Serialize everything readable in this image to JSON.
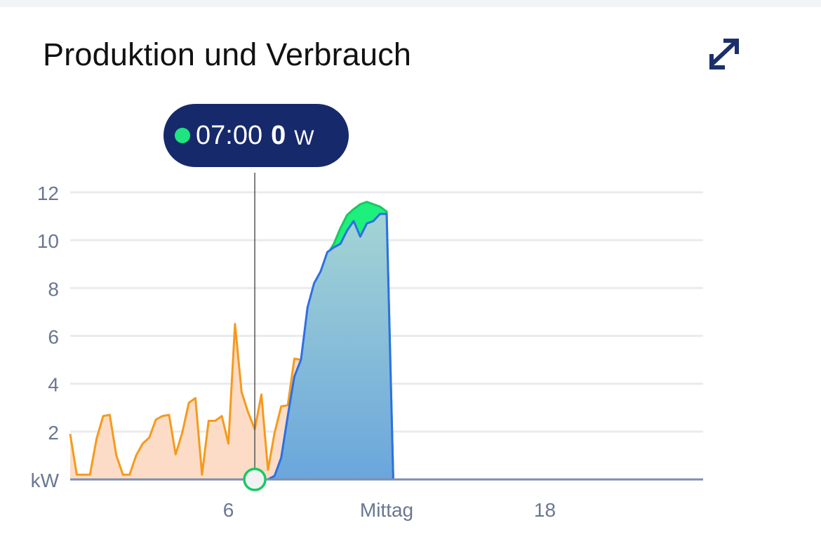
{
  "header": {
    "title": "Produktion und Verbrauch",
    "expand_icon": "expand-arrows-icon"
  },
  "tooltip": {
    "time": "07:00",
    "value": "0",
    "unit": "W",
    "dot_color": "#1de57f"
  },
  "colors": {
    "consumption_line": "#f59a1d",
    "consumption_fill": "#fcdcc6",
    "production_line": "#18c964",
    "production_fill": "#1ef07e",
    "self_use_line": "#2f6fe3",
    "self_use_fill_top": "#a4d4d4",
    "self_use_fill_bottom": "#6aa6dc",
    "grid": "#e9ebef",
    "axis_text": "#6a7791",
    "crosshair": "#555555",
    "header_icon": "#1b2f6b"
  },
  "chart_data": {
    "type": "area",
    "ylabel": "kW",
    "ylim": [
      0,
      12
    ],
    "xlim": [
      0,
      24
    ],
    "y_ticks": [
      2,
      4,
      6,
      8,
      10,
      12
    ],
    "x_ticks": [
      {
        "value": 6,
        "label": "6"
      },
      {
        "value": 12,
        "label": "Mittag"
      },
      {
        "value": 18,
        "label": "18"
      }
    ],
    "grid": true,
    "cursor_x": 7,
    "series": [
      {
        "key": "consumption",
        "x": [
          0.0,
          0.25,
          0.5,
          0.75,
          1.0,
          1.25,
          1.5,
          1.75,
          2.0,
          2.25,
          2.5,
          2.75,
          3.0,
          3.25,
          3.5,
          3.75,
          4.0,
          4.25,
          4.5,
          4.75,
          5.0,
          5.25,
          5.5,
          5.75,
          6.0,
          6.25,
          6.5,
          6.75,
          7.0,
          7.25,
          7.5,
          7.75,
          8.0,
          8.25,
          8.5,
          8.75,
          9.0,
          9.25,
          9.5,
          9.75,
          10.0,
          10.25,
          10.5,
          10.75,
          11.0,
          11.25,
          11.5,
          11.75,
          12.0,
          12.25,
          24.0
        ],
        "values": [
          1.9,
          0.2,
          0.2,
          0.2,
          1.7,
          2.65,
          2.7,
          1.0,
          0.2,
          0.2,
          1.0,
          1.5,
          1.75,
          2.5,
          2.65,
          2.7,
          1.05,
          1.95,
          3.2,
          3.4,
          0.2,
          2.45,
          2.45,
          2.65,
          1.5,
          6.5,
          3.65,
          2.8,
          2.1,
          3.55,
          0.4,
          1.95,
          3.05,
          3.1,
          5.05,
          5.0,
          6.5,
          7.8,
          8.7,
          9.4,
          9.85,
          10.5,
          11.05,
          11.3,
          11.5,
          11.6,
          11.5,
          11.2,
          0.0,
          0.0,
          0.0
        ]
      },
      {
        "key": "production",
        "x": [
          0.0,
          7.0,
          7.5,
          7.75,
          8.0,
          8.25,
          8.5,
          8.75,
          9.0,
          9.25,
          9.5,
          9.75,
          10.0,
          10.25,
          10.5,
          10.75,
          11.0,
          11.25,
          11.5,
          11.75,
          12.0,
          12.25,
          24.0
        ],
        "values": [
          0.0,
          0.0,
          0.0,
          0.15,
          0.9,
          2.65,
          4.3,
          5.0,
          6.5,
          7.8,
          8.7,
          9.4,
          9.85,
          10.5,
          11.05,
          11.3,
          11.5,
          11.6,
          11.5,
          11.4,
          11.2,
          0.0,
          0.0
        ]
      },
      {
        "key": "self_use",
        "x": [
          0.0,
          7.0,
          7.5,
          7.75,
          8.0,
          8.25,
          8.5,
          8.75,
          9.0,
          9.25,
          9.5,
          9.75,
          10.0,
          10.25,
          10.5,
          10.75,
          11.0,
          11.25,
          11.5,
          11.75,
          12.0,
          12.25,
          24.0
        ],
        "values": [
          0.0,
          0.0,
          0.0,
          0.15,
          0.9,
          2.65,
          4.3,
          5.0,
          7.2,
          8.2,
          8.7,
          9.5,
          9.7,
          9.85,
          10.4,
          10.8,
          10.15,
          10.7,
          10.8,
          11.1,
          11.1,
          0.0,
          0.0
        ]
      }
    ]
  }
}
